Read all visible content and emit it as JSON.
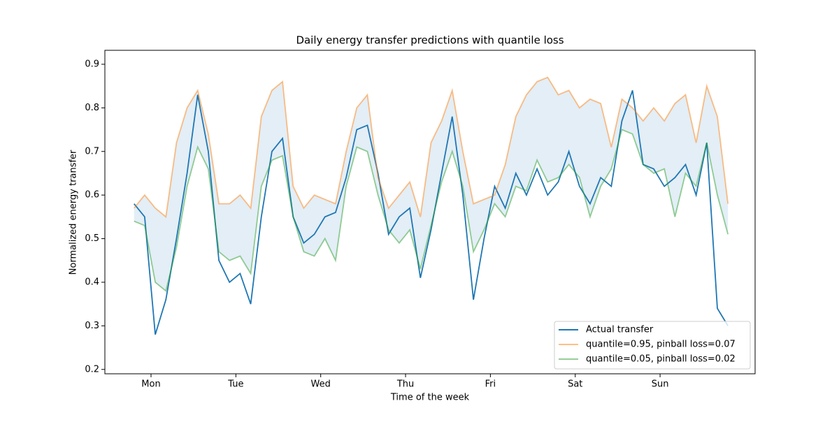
{
  "chart_data": {
    "type": "line",
    "title": "Daily energy transfer predictions with quantile loss",
    "x_label": "Time of the week",
    "y_label": "Normalized energy transfer",
    "x": [
      0.3,
      0.425,
      0.55,
      0.675,
      0.8,
      0.925,
      1.05,
      1.175,
      1.3,
      1.425,
      1.55,
      1.675,
      1.8,
      1.925,
      2.05,
      2.175,
      2.3,
      2.425,
      2.55,
      2.675,
      2.8,
      2.925,
      3.05,
      3.175,
      3.3,
      3.425,
      3.55,
      3.675,
      3.8,
      3.925,
      4.05,
      4.175,
      4.3,
      4.425,
      4.55,
      4.675,
      4.8,
      4.925,
      5.05,
      5.175,
      5.3,
      5.425,
      5.55,
      5.675,
      5.8,
      5.925,
      6.05,
      6.175,
      6.3,
      6.425,
      6.55,
      6.675,
      6.8,
      6.925,
      7.05,
      7.175,
      7.3
    ],
    "series": [
      {
        "name": "Actual transfer",
        "color": "#1f77b4",
        "opacity": 1,
        "values": [
          0.58,
          0.55,
          0.28,
          0.36,
          0.5,
          0.65,
          0.83,
          0.7,
          0.45,
          0.4,
          0.42,
          0.35,
          0.55,
          0.7,
          0.73,
          0.55,
          0.49,
          0.51,
          0.55,
          0.56,
          0.64,
          0.75,
          0.76,
          0.65,
          0.51,
          0.55,
          0.57,
          0.41,
          0.52,
          0.65,
          0.78,
          0.6,
          0.36,
          0.5,
          0.62,
          0.57,
          0.65,
          0.6,
          0.66,
          0.6,
          0.63,
          0.7,
          0.62,
          0.58,
          0.64,
          0.62,
          0.77,
          0.84,
          0.67,
          0.66,
          0.62,
          0.64,
          0.67,
          0.6,
          0.72,
          0.34,
          0.3
        ]
      },
      {
        "name": "quantile=0.95, pinball loss=0.07",
        "color": "#ff7f0e",
        "opacity": 0.5,
        "values": [
          0.57,
          0.6,
          0.57,
          0.55,
          0.72,
          0.8,
          0.84,
          0.74,
          0.58,
          0.58,
          0.6,
          0.57,
          0.78,
          0.84,
          0.86,
          0.62,
          0.57,
          0.6,
          0.59,
          0.58,
          0.7,
          0.8,
          0.83,
          0.64,
          0.57,
          0.6,
          0.63,
          0.55,
          0.72,
          0.77,
          0.84,
          0.7,
          0.58,
          0.59,
          0.6,
          0.67,
          0.78,
          0.83,
          0.86,
          0.87,
          0.83,
          0.84,
          0.8,
          0.82,
          0.81,
          0.71,
          0.82,
          0.8,
          0.77,
          0.8,
          0.77,
          0.81,
          0.83,
          0.72,
          0.85,
          0.78,
          0.58
        ]
      },
      {
        "name": "quantile=0.05, pinball loss=0.02",
        "color": "#2ca02c",
        "opacity": 0.5,
        "values": [
          0.54,
          0.53,
          0.4,
          0.38,
          0.48,
          0.62,
          0.71,
          0.66,
          0.47,
          0.45,
          0.46,
          0.42,
          0.62,
          0.68,
          0.69,
          0.55,
          0.47,
          0.46,
          0.5,
          0.45,
          0.62,
          0.71,
          0.7,
          0.6,
          0.52,
          0.49,
          0.52,
          0.43,
          0.53,
          0.63,
          0.7,
          0.62,
          0.47,
          0.52,
          0.58,
          0.55,
          0.62,
          0.61,
          0.68,
          0.63,
          0.64,
          0.67,
          0.64,
          0.55,
          0.62,
          0.66,
          0.75,
          0.74,
          0.67,
          0.65,
          0.66,
          0.55,
          0.65,
          0.62,
          0.72,
          0.6,
          0.51
        ]
      }
    ],
    "band_color": "#e3eef6",
    "xlim": [
      -0.044,
      7.62
    ],
    "ylim": [
      0.19,
      0.932
    ],
    "xticks": [
      {
        "value": 0.5,
        "label": "Mon"
      },
      {
        "value": 1.5,
        "label": "Tue"
      },
      {
        "value": 2.5,
        "label": "Wed"
      },
      {
        "value": 3.5,
        "label": "Thu"
      },
      {
        "value": 4.5,
        "label": "Fri"
      },
      {
        "value": 5.5,
        "label": "Sat"
      },
      {
        "value": 6.5,
        "label": "Sun"
      }
    ],
    "yticks": [
      0.2,
      0.3,
      0.4,
      0.5,
      0.6,
      0.7,
      0.8,
      0.9
    ],
    "legend": "lower right"
  }
}
